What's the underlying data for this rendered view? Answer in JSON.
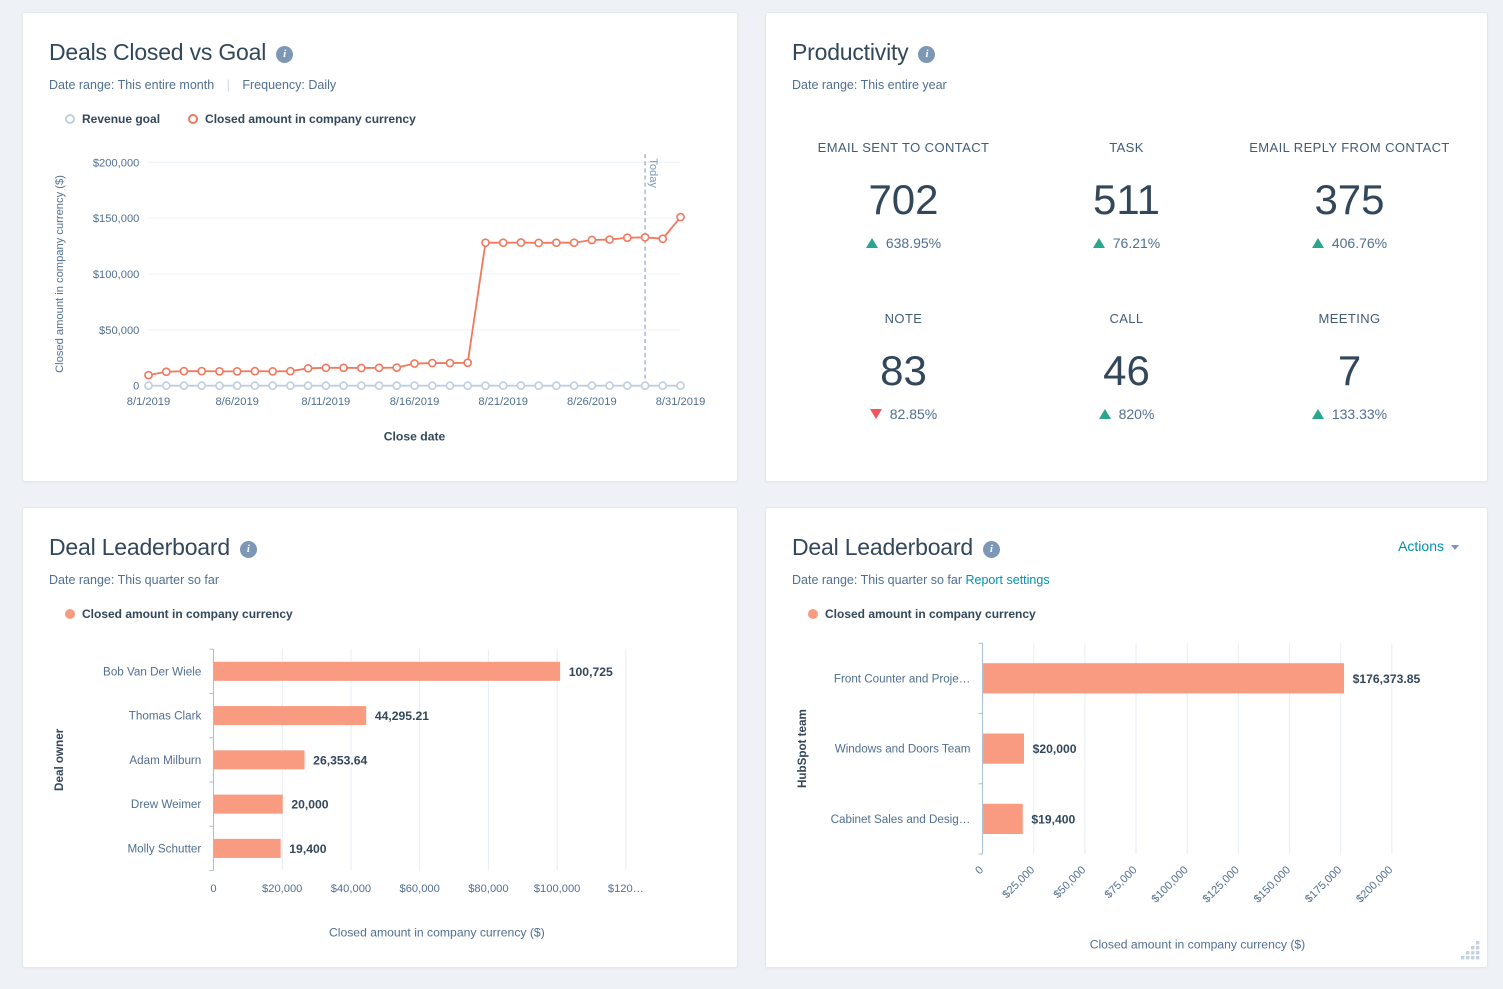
{
  "colors": {
    "positive": "#2ba58e",
    "negative": "#f2545b",
    "series_orange_line": "#f0795f",
    "series_orange_bar": "#f89b81",
    "series_gray": "#c0cfdf",
    "link_teal": "#0091ae",
    "text_dark": "#33475b",
    "text_muted": "#516f90"
  },
  "cards": {
    "deals_closed": {
      "title": "Deals Closed vs Goal",
      "date_range_label": "Date range:",
      "date_range": "This entire month",
      "frequency_label": "Frequency:",
      "frequency": "Daily"
    },
    "productivity": {
      "title": "Productivity",
      "date_range_label": "Date range:",
      "date_range": "This entire year",
      "kpis": [
        {
          "label": "EMAIL SENT TO CONTACT",
          "value": "702",
          "delta": "638.95%",
          "direction": "up"
        },
        {
          "label": "TASK",
          "value": "511",
          "delta": "76.21%",
          "direction": "up"
        },
        {
          "label": "EMAIL REPLY FROM CONTACT",
          "value": "375",
          "delta": "406.76%",
          "direction": "up"
        },
        {
          "label": "NOTE",
          "value": "83",
          "delta": "82.85%",
          "direction": "down"
        },
        {
          "label": "CALL",
          "value": "46",
          "delta": "820%",
          "direction": "up"
        },
        {
          "label": "MEETING",
          "value": "7",
          "delta": "133.33%",
          "direction": "up"
        }
      ]
    },
    "leaderboard_left": {
      "title": "Deal Leaderboard",
      "date_range_label": "Date range:",
      "date_range": "This quarter so far",
      "series_name": "Closed amount in company currency"
    },
    "leaderboard_right": {
      "title": "Deal Leaderboard",
      "date_range_label": "Date range:",
      "date_range": "This quarter so far",
      "report_settings_label": "Report settings",
      "actions_label": "Actions",
      "series_name": "Closed amount in company currency"
    }
  },
  "chart_data": [
    {
      "id": "deals-closed-vs-goal",
      "type": "line",
      "title": "Deals Closed vs Goal",
      "xlabel": "Close date",
      "ylabel": "Closed amount in company currency ($)",
      "ylim": [
        0,
        200000
      ],
      "grid": true,
      "legend_position": "top",
      "yticks": [
        {
          "v": 0,
          "label": "0"
        },
        {
          "v": 50000,
          "label": "$50,000"
        },
        {
          "v": 100000,
          "label": "$100,000"
        },
        {
          "v": 150000,
          "label": "$150,000"
        },
        {
          "v": 200000,
          "label": "$200,000"
        }
      ],
      "x": [
        "8/1/2019",
        "8/2/2019",
        "8/3/2019",
        "8/4/2019",
        "8/5/2019",
        "8/6/2019",
        "8/7/2019",
        "8/8/2019",
        "8/9/2019",
        "8/10/2019",
        "8/11/2019",
        "8/12/2019",
        "8/13/2019",
        "8/14/2019",
        "8/15/2019",
        "8/16/2019",
        "8/17/2019",
        "8/18/2019",
        "8/19/2019",
        "8/20/2019",
        "8/21/2019",
        "8/22/2019",
        "8/23/2019",
        "8/24/2019",
        "8/25/2019",
        "8/26/2019",
        "8/27/2019",
        "8/28/2019",
        "8/29/2019",
        "8/30/2019",
        "8/31/2019"
      ],
      "xticks": [
        {
          "i": 0,
          "label": "8/1/2019"
        },
        {
          "i": 5,
          "label": "8/6/2019"
        },
        {
          "i": 10,
          "label": "8/11/2019"
        },
        {
          "i": 15,
          "label": "8/16/2019"
        },
        {
          "i": 20,
          "label": "8/21/2019"
        },
        {
          "i": 25,
          "label": "8/26/2019"
        },
        {
          "i": 30,
          "label": "8/31/2019"
        }
      ],
      "today_index": 28,
      "today_label": "Today",
      "series": [
        {
          "name": "Revenue goal",
          "color": "#c0cfdf",
          "values": [
            0,
            0,
            0,
            0,
            0,
            0,
            0,
            0,
            0,
            0,
            0,
            0,
            0,
            0,
            0,
            0,
            0,
            0,
            0,
            0,
            0,
            0,
            0,
            0,
            0,
            0,
            0,
            0,
            0,
            0,
            0
          ]
        },
        {
          "name": "Closed amount in company currency",
          "color": "#f0795f",
          "values": [
            9500,
            12500,
            13000,
            13000,
            12800,
            12800,
            13000,
            12800,
            13000,
            15500,
            16000,
            16000,
            15800,
            16000,
            16200,
            19800,
            20300,
            20300,
            20500,
            128000,
            128000,
            128200,
            127800,
            128000,
            128000,
            130500,
            130800,
            132500,
            132800,
            131500,
            151000
          ]
        }
      ]
    },
    {
      "id": "deal-leaderboard-by-owner",
      "type": "bar",
      "orientation": "horizontal",
      "title": "Deal Leaderboard",
      "xlabel": "Closed amount in company currency ($)",
      "ylabel": "Deal owner",
      "xlim": [
        0,
        130000
      ],
      "grid": true,
      "bar_color": "#f89b81",
      "categories": [
        "Bob Van Der Wiele",
        "Thomas Clark",
        "Adam Milburn",
        "Drew Weimer",
        "Molly Schutter"
      ],
      "values": [
        100725,
        44295.21,
        26353.64,
        20000,
        19400
      ],
      "value_labels": [
        "100,725",
        "44,295.21",
        "26,353.64",
        "20,000",
        "19,400"
      ],
      "xticks": [
        {
          "v": 0,
          "label": "0"
        },
        {
          "v": 20000,
          "label": "$20,000"
        },
        {
          "v": 40000,
          "label": "$40,000"
        },
        {
          "v": 60000,
          "label": "$60,000"
        },
        {
          "v": 80000,
          "label": "$80,000"
        },
        {
          "v": 100000,
          "label": "$100,000"
        },
        {
          "v": 120000,
          "label": "$120…"
        }
      ],
      "rotate_xticks": false
    },
    {
      "id": "deal-leaderboard-by-team",
      "type": "bar",
      "orientation": "horizontal",
      "title": "Deal Leaderboard",
      "xlabel": "Closed amount in company currency ($)",
      "ylabel": "HubSpot team",
      "xlim": [
        0,
        210000
      ],
      "grid": true,
      "bar_color": "#f89b81",
      "categories": [
        "Front Counter and Proje…",
        "Windows and Doors Team",
        "Cabinet Sales and Desig…"
      ],
      "values": [
        176373.85,
        20000,
        19400
      ],
      "value_labels": [
        "$176,373.85",
        "$20,000",
        "$19,400"
      ],
      "xticks": [
        {
          "v": 0,
          "label": "0"
        },
        {
          "v": 25000,
          "label": "$25,000"
        },
        {
          "v": 50000,
          "label": "$50,000"
        },
        {
          "v": 75000,
          "label": "$75,000"
        },
        {
          "v": 100000,
          "label": "$100,000"
        },
        {
          "v": 125000,
          "label": "$125,000"
        },
        {
          "v": 150000,
          "label": "$150,000"
        },
        {
          "v": 175000,
          "label": "$175,000"
        },
        {
          "v": 200000,
          "label": "$200,000"
        }
      ],
      "rotate_xticks": true
    }
  ]
}
